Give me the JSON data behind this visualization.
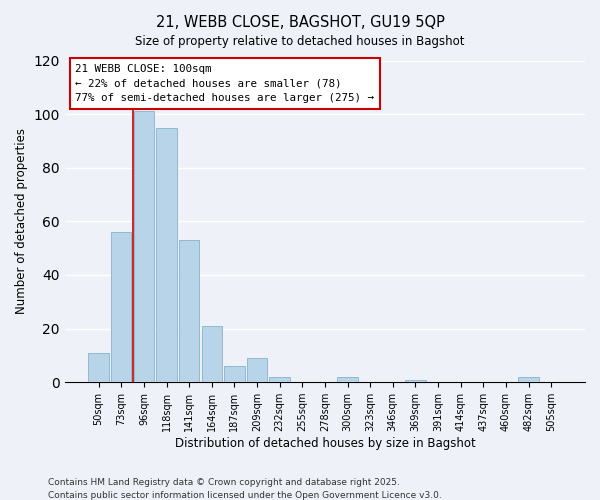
{
  "title": "21, WEBB CLOSE, BAGSHOT, GU19 5QP",
  "subtitle": "Size of property relative to detached houses in Bagshot",
  "xlabel": "Distribution of detached houses by size in Bagshot",
  "ylabel": "Number of detached properties",
  "bar_color": "#b8d4e8",
  "bar_edge_color": "#90b8d0",
  "background_color": "#eef2f8",
  "grid_color": "white",
  "categories": [
    "50sqm",
    "73sqm",
    "96sqm",
    "118sqm",
    "141sqm",
    "164sqm",
    "187sqm",
    "209sqm",
    "232sqm",
    "255sqm",
    "278sqm",
    "300sqm",
    "323sqm",
    "346sqm",
    "369sqm",
    "391sqm",
    "414sqm",
    "437sqm",
    "460sqm",
    "482sqm",
    "505sqm"
  ],
  "values": [
    11,
    56,
    101,
    95,
    53,
    21,
    6,
    9,
    2,
    0,
    0,
    2,
    0,
    0,
    1,
    0,
    0,
    0,
    0,
    2,
    0
  ],
  "ylim": [
    0,
    120
  ],
  "yticks": [
    0,
    20,
    40,
    60,
    80,
    100,
    120
  ],
  "property_line_color": "#cc0000",
  "annotation_title": "21 WEBB CLOSE: 100sqm",
  "annotation_line1": "← 22% of detached houses are smaller (78)",
  "annotation_line2": "77% of semi-detached houses are larger (275) →",
  "footer1": "Contains HM Land Registry data © Crown copyright and database right 2025.",
  "footer2": "Contains public sector information licensed under the Open Government Licence v3.0."
}
